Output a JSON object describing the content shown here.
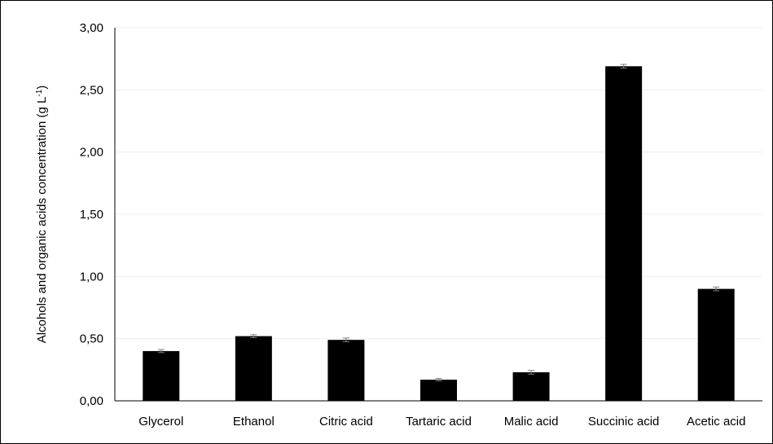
{
  "chart_data": {
    "type": "bar",
    "categories": [
      "Glycerol",
      "Ethanol",
      "Citric acid",
      "Tartaric acid",
      "Malic acid",
      "Succinic acid",
      "Acetic acid"
    ],
    "values": [
      0.4,
      0.52,
      0.49,
      0.17,
      0.23,
      2.69,
      0.9
    ],
    "error": [
      0.012,
      0.012,
      0.015,
      0.01,
      0.015,
      0.015,
      0.015
    ],
    "ylabel": "Alcohols and organic acids concentration (g L",
    "ylabel_sup": "-1",
    "ylabel_close": ")",
    "ylim": [
      0,
      3
    ],
    "yticks": [
      "0,00",
      "0,50",
      "1,00",
      "1,50",
      "2,00",
      "2,50",
      "3,00"
    ],
    "ytick_values": [
      0,
      0.5,
      1,
      1.5,
      2,
      2.5,
      3
    ],
    "grid": true,
    "bar_color": "#000000",
    "grid_color": "#efefef"
  }
}
